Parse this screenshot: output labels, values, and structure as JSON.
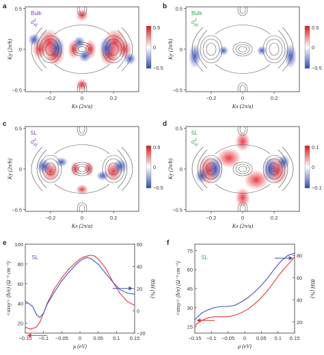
{
  "colors": {
    "purple": "#7a3fb0",
    "green": "#2aa84a",
    "red": "#e8333d",
    "blue": "#4050b8",
    "contour": "#555555"
  },
  "maps": [
    {
      "panel": "a",
      "label": "Bulk",
      "component": "σ",
      "sup": "z",
      "sub": "xy",
      "label_color": "purple",
      "colorbar": {
        "max": "0.5",
        "zero": "0",
        "min": "−0.5"
      },
      "xticks": [
        "−0.2",
        "0",
        "0.2"
      ],
      "yticks": [
        "0.5",
        "0",
        "−0.5"
      ],
      "xlabel": "Kx (2π/a)",
      "ylabel": "Ky (2π/b)"
    },
    {
      "panel": "b",
      "label": "Bulk",
      "component": "σ",
      "sup": "z",
      "sub": "xy",
      "label_color": "green",
      "colorbar": {
        "max": "0.5",
        "zero": "0",
        "min": "−0.5"
      },
      "xticks": [
        "−0.2",
        "0",
        "0.2"
      ],
      "yticks": [
        "0.5",
        "0",
        "−0.5"
      ],
      "xlabel": "Kx (2π/a)",
      "ylabel": "Ky (2π/b)"
    },
    {
      "panel": "c",
      "label": "5L",
      "component": "σ",
      "sup": "z",
      "sub": "xy",
      "label_color": "purple",
      "colorbar": {
        "max": "0.5",
        "zero": "0",
        "min": "−0.5"
      },
      "xticks": [
        "−0.2",
        "0",
        "0.2"
      ],
      "yticks": [
        "0.5",
        "0",
        "−0.5"
      ],
      "xlabel": "Kx (2π/a)",
      "ylabel": "Ky (2π/b)"
    },
    {
      "panel": "d",
      "label": "5L",
      "component": "σ",
      "sup": "z",
      "sub": "xy",
      "label_color": "green",
      "colorbar": {
        "max": "0.1",
        "zero": "0",
        "min": "−0.1"
      },
      "xticks": [
        "−0.2",
        "0",
        "0.2"
      ],
      "yticks": [
        "0.5",
        "0",
        "−0.5"
      ],
      "xlabel": "Kx (2π/a)",
      "ylabel": "Ky (2π/b)"
    }
  ],
  "chart_data": [
    {
      "panel": "e",
      "type": "line",
      "label": "5L",
      "label_color": "purple",
      "xlabel": "μ (eV)",
      "ylabel_left": "<σzxy> (ħ/e) (Ω⁻¹ cm⁻¹)",
      "ylabel_right": "θSH (%)",
      "xlim": [
        -0.15,
        0.15
      ],
      "ylim_left": [
        10,
        100
      ],
      "ylim_right": [
        -20,
        60
      ],
      "xticks": [
        "−0.15",
        "−0.1",
        "−0.05",
        "0",
        "0.05",
        "0.1",
        "0.15"
      ],
      "yticks_left": [
        "20",
        "40",
        "60",
        "80",
        "100"
      ],
      "yticks_right": [
        "−20",
        "0",
        "20",
        "40",
        "60"
      ],
      "series": [
        {
          "axis": "left",
          "color": "red",
          "x": [
            -0.15,
            -0.135,
            -0.12,
            -0.11,
            -0.1,
            -0.09,
            -0.07,
            -0.05,
            -0.03,
            -0.01,
            0.0,
            0.01,
            0.02,
            0.03,
            0.04,
            0.05,
            0.07,
            0.09,
            0.11,
            0.13,
            0.15
          ],
          "y": [
            16,
            14,
            16,
            21,
            30,
            40,
            55,
            66,
            75,
            82,
            85,
            87,
            88,
            89,
            88,
            85,
            76,
            62,
            50,
            42,
            38
          ]
        },
        {
          "axis": "right",
          "color": "blue",
          "x": [
            -0.15,
            -0.13,
            -0.12,
            -0.11,
            -0.1,
            -0.09,
            -0.07,
            -0.05,
            -0.03,
            -0.01,
            0.0,
            0.01,
            0.02,
            0.03,
            0.05,
            0.07,
            0.09,
            0.11,
            0.13,
            0.15
          ],
          "y": [
            9,
            4,
            -3,
            -6,
            -2,
            6,
            17,
            27,
            35,
            42,
            45,
            47,
            48,
            47,
            42,
            34,
            26,
            19,
            16,
            15
          ]
        }
      ]
    },
    {
      "panel": "f",
      "type": "line",
      "label": "5L",
      "label_color": "green",
      "xlabel": "μ (eV)",
      "ylabel_left": "<σzxy> (ħ/e) (Ω⁻¹ cm⁻¹)",
      "ylabel_right": "θSH (%)",
      "xlim": [
        -0.15,
        0.15
      ],
      "ylim_left": [
        10,
        80
      ],
      "ylim_right": [
        10,
        90
      ],
      "xticks": [
        "−0.15",
        "−0.1",
        "−0.05",
        "0",
        "0.05",
        "0.1",
        "0.15"
      ],
      "yticks_left": [
        "15",
        "30",
        "45",
        "60",
        "75"
      ],
      "yticks_right": [
        "20",
        "40",
        "60",
        "80"
      ],
      "series": [
        {
          "axis": "left",
          "color": "red",
          "x": [
            -0.15,
            -0.13,
            -0.11,
            -0.09,
            -0.07,
            -0.05,
            -0.03,
            -0.01,
            0.01,
            0.03,
            0.05,
            0.07,
            0.09,
            0.11,
            0.13,
            0.15
          ],
          "y": [
            16,
            20,
            22,
            23,
            23,
            23,
            24,
            26,
            29,
            33,
            38,
            44,
            51,
            58,
            64,
            70
          ]
        },
        {
          "axis": "right",
          "color": "blue",
          "x": [
            -0.15,
            -0.13,
            -0.11,
            -0.09,
            -0.07,
            -0.05,
            -0.03,
            -0.01,
            0.01,
            0.03,
            0.05,
            0.07,
            0.09,
            0.11,
            0.13,
            0.15
          ],
          "y": [
            22,
            28,
            31,
            33,
            34,
            34,
            35,
            38,
            42,
            47,
            53,
            60,
            68,
            75,
            80,
            82
          ]
        }
      ]
    }
  ]
}
